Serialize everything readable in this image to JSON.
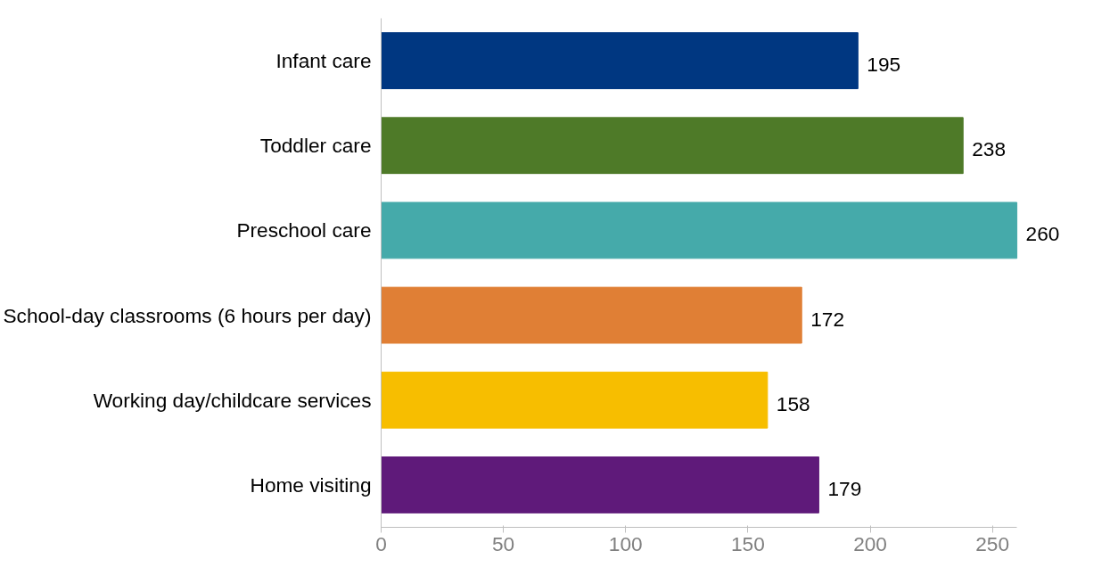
{
  "chart_data": {
    "type": "bar",
    "orientation": "horizontal",
    "categories": [
      "Infant care",
      "Toddler care",
      "Preschool care",
      "School-day classrooms (6 hours per day)",
      "Working day/childcare services",
      "Home visiting"
    ],
    "values": [
      195,
      238,
      260,
      172,
      158,
      179
    ],
    "colors": [
      "#003781",
      "#4e7a28",
      "#45aaaa",
      "#e07f35",
      "#f7be00",
      "#5f1a7a"
    ],
    "xlim": [
      0,
      260
    ],
    "xticks": [
      0,
      50,
      100,
      150,
      200,
      250
    ],
    "data_labels": true,
    "grid": false,
    "legend": false
  }
}
